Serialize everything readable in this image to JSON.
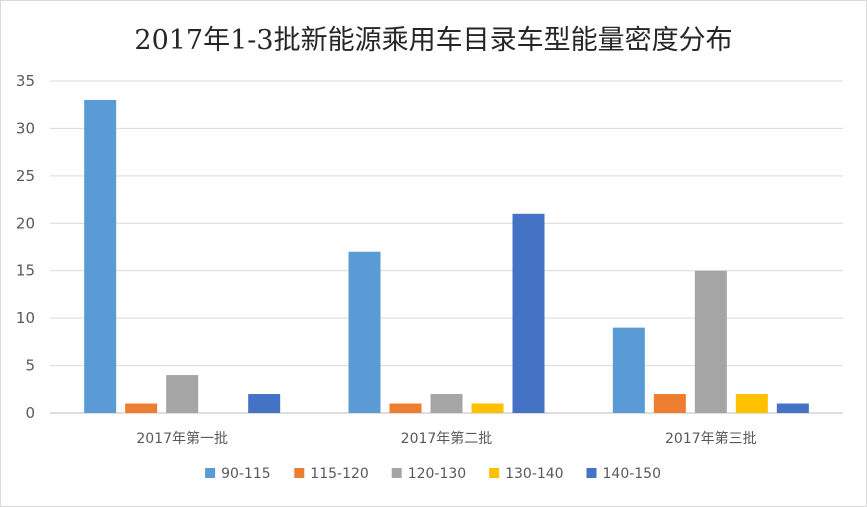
{
  "chart_data": {
    "type": "bar",
    "title": "2017年1-3批新能源乘用车目录车型能量密度分布",
    "xlabel": "",
    "ylabel": "",
    "ylim": [
      0,
      35
    ],
    "yticks": [
      "0",
      "5",
      "10",
      "15",
      "20",
      "25",
      "30",
      "35"
    ],
    "grid": true,
    "legend_position": "bottom",
    "categories": [
      "2017年第一批",
      "2017年第二批",
      "2017年第三批"
    ],
    "series": [
      {
        "name": "90-115",
        "color": "#5b9bd5",
        "values": [
          33,
          17,
          9
        ]
      },
      {
        "name": "115-120",
        "color": "#ed7d31",
        "values": [
          1,
          1,
          2
        ]
      },
      {
        "name": "120-130",
        "color": "#a5a5a5",
        "values": [
          4,
          2,
          15
        ]
      },
      {
        "name": "130-140",
        "color": "#ffc000",
        "values": [
          0,
          1,
          2
        ]
      },
      {
        "name": "140-150",
        "color": "#4472c4",
        "values": [
          2,
          21,
          1
        ]
      }
    ]
  }
}
